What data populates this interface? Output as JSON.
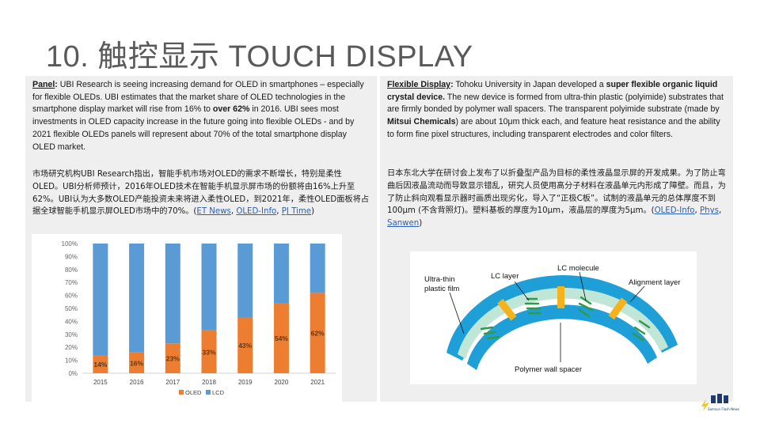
{
  "slide": {
    "title": "10. 触控显示 TOUCH DISPLAY"
  },
  "left": {
    "en": {
      "lead": "Panel",
      "colon": ":",
      "t1": " UBI Research is seeing increasing demand for OLED in smartphones – especially for flexible OLEDs. UBI estimates that the market share of OLED technologies in the smartphone display market will rise from 16% to ",
      "bold1": "over 62%",
      "t2": " in 2016. UBI sees most investments in OLED capacity increase in the future going into flexible OLEDs - and by 2021 flexible OLEDs panels will represent about 70% of the total smartphone display OLED market."
    },
    "zh": {
      "text": "市场研究机构UBI Research指出，智能手机市场对OLED的需求不断增长，特别是柔性OLED。UBI分析师预计，2016年OLED技术在智能手机显示屏市场的份额将由16%上升至62%。UBI认为大多数OLED产能投资未来将进入柔性OLED，到2021年，柔性OLED面板将占据全球智能手机显示屏OLED市场中的70%。(",
      "link1": "ET News",
      "sep1": ", ",
      "link2": "OLED-Info",
      "sep2": ", ",
      "link3": "PJ Time",
      "close": ")"
    }
  },
  "right": {
    "en": {
      "lead": "Flexible Display",
      "colon": ":",
      "t1": " Tohoku University in Japan developed a ",
      "bold1": "super flexible organic liquid crystal device.",
      "t2": " The new device is formed from ultra-thin plastic (polyimide) substrates that are firmly bonded by polymer wall spacers. The transparent polyimide substrate (made by ",
      "bold2": "Mitsui Chemicals",
      "t3": ") are about 10μm thick each, and feature heat resistance and the ability to form fine pixel structures, including transparent electrodes and color filters."
    },
    "zh": {
      "text": "日本东北大学在研讨会上发布了以折叠型产品为目标的柔性液晶显示屏的开发成果。为了防止弯曲后因液晶流动而导致显示错乱，研究人员使用高分子材料在液晶单元内形成了障壁。而且，为了防止斜向观看显示器时画质出现劣化，导入了“正极C板”。试制的液晶单元的总体厚度不到100μm (不含背照灯)。塑料基板的厚度为10μm，液晶层的厚度为5μm。(",
      "link1": "OLED-Info",
      "sep1": ", ",
      "link2": "Phys",
      "sep2": ", ",
      "link3": "Sanwen",
      "close": ")"
    }
  },
  "diagram": {
    "labels": {
      "film": "Ultra-thin\nplastic film",
      "lc_layer": "LC layer",
      "lc_molecule": "LC molecule",
      "alignment": "Alignment layer",
      "spacer": "Polymer wall spacer"
    },
    "colors": {
      "outer": "#1e9fd8",
      "inner": "#bfe6d6",
      "spacer": "#f5b21b",
      "molecule": "#2e9a4a"
    }
  },
  "chart_data": {
    "type": "bar",
    "stacked": true,
    "percent": true,
    "categories": [
      "2015",
      "2016",
      "2017",
      "2018",
      "2019",
      "2020",
      "2021"
    ],
    "series": [
      {
        "name": "OLED",
        "color": "#ed7d31",
        "values": [
          14,
          16,
          23,
          33,
          43,
          54,
          62
        ]
      },
      {
        "name": "LCD",
        "color": "#5b9bd5",
        "values": [
          86,
          84,
          77,
          67,
          57,
          46,
          38
        ]
      }
    ],
    "data_labels": [
      "14%",
      "16%",
      "23%",
      "33%",
      "43%",
      "54%",
      "62%"
    ],
    "yticks": [
      "0%",
      "10%",
      "20%",
      "30%",
      "40%",
      "50%",
      "60%",
      "70%",
      "80%",
      "90%",
      "100%"
    ],
    "ylim": [
      0,
      100
    ],
    "legend": "bottom",
    "grid": false
  },
  "logo": {
    "text": "Samsun Flash News"
  }
}
